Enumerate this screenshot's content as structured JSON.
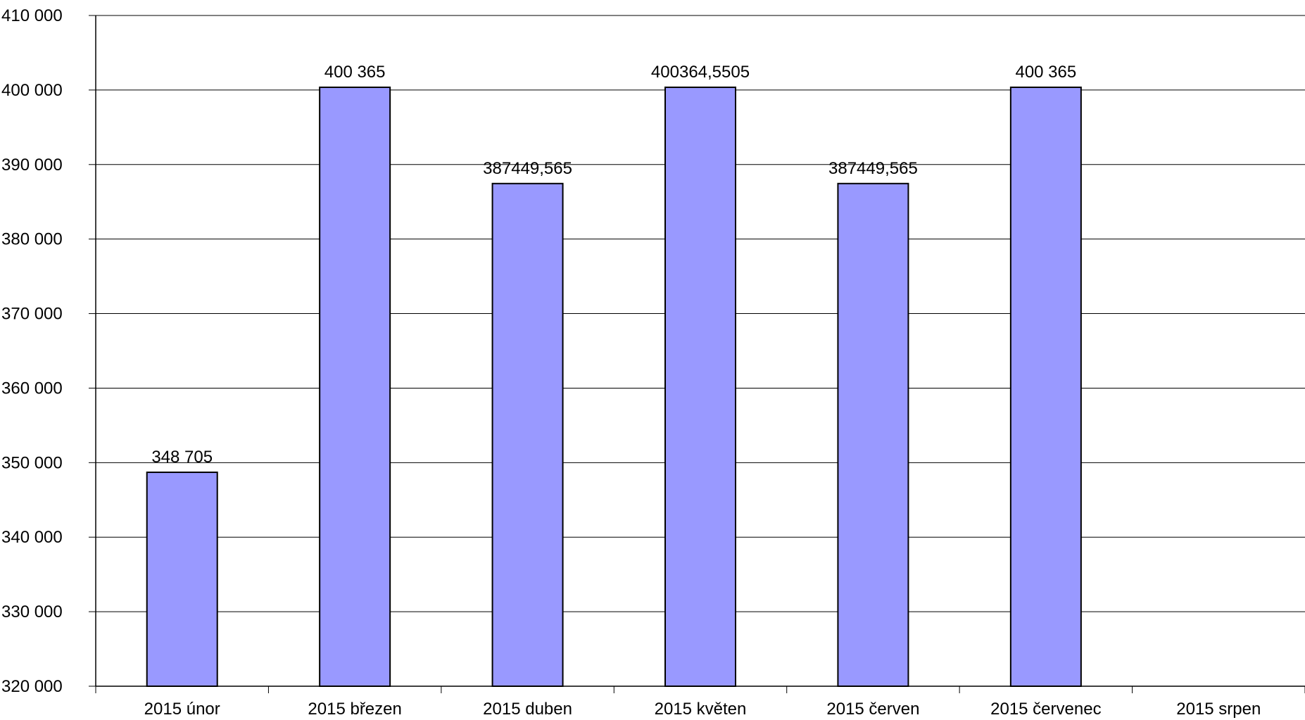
{
  "chart_data": {
    "type": "bar",
    "categories": [
      "2015 únor",
      "2015 březen",
      "2015 duben",
      "2015 květen",
      "2015 červen",
      "2015 červenec",
      "2015 srpen"
    ],
    "values": [
      348705,
      400365,
      387449.565,
      400364.5505,
      387449.565,
      400365,
      null
    ],
    "data_labels": [
      "348 705",
      "400 365",
      "387449,565",
      "400364,5505",
      "387449,565",
      "400 365",
      ""
    ],
    "ylim": [
      320000,
      410000
    ],
    "y_ticks": [
      320000,
      330000,
      340000,
      350000,
      360000,
      370000,
      380000,
      390000,
      400000,
      410000
    ],
    "y_tick_labels": [
      "320 000",
      "330 000",
      "340 000",
      "350 000",
      "360 000",
      "370 000",
      "380 000",
      "390 000",
      "400 000",
      "410 000"
    ],
    "grid": true,
    "legend": "none",
    "title": "",
    "xlabel": "",
    "ylabel": "",
    "colors": {
      "bar_fill": "#9999ff",
      "bar_stroke": "#000000",
      "grid": "#000000"
    }
  }
}
